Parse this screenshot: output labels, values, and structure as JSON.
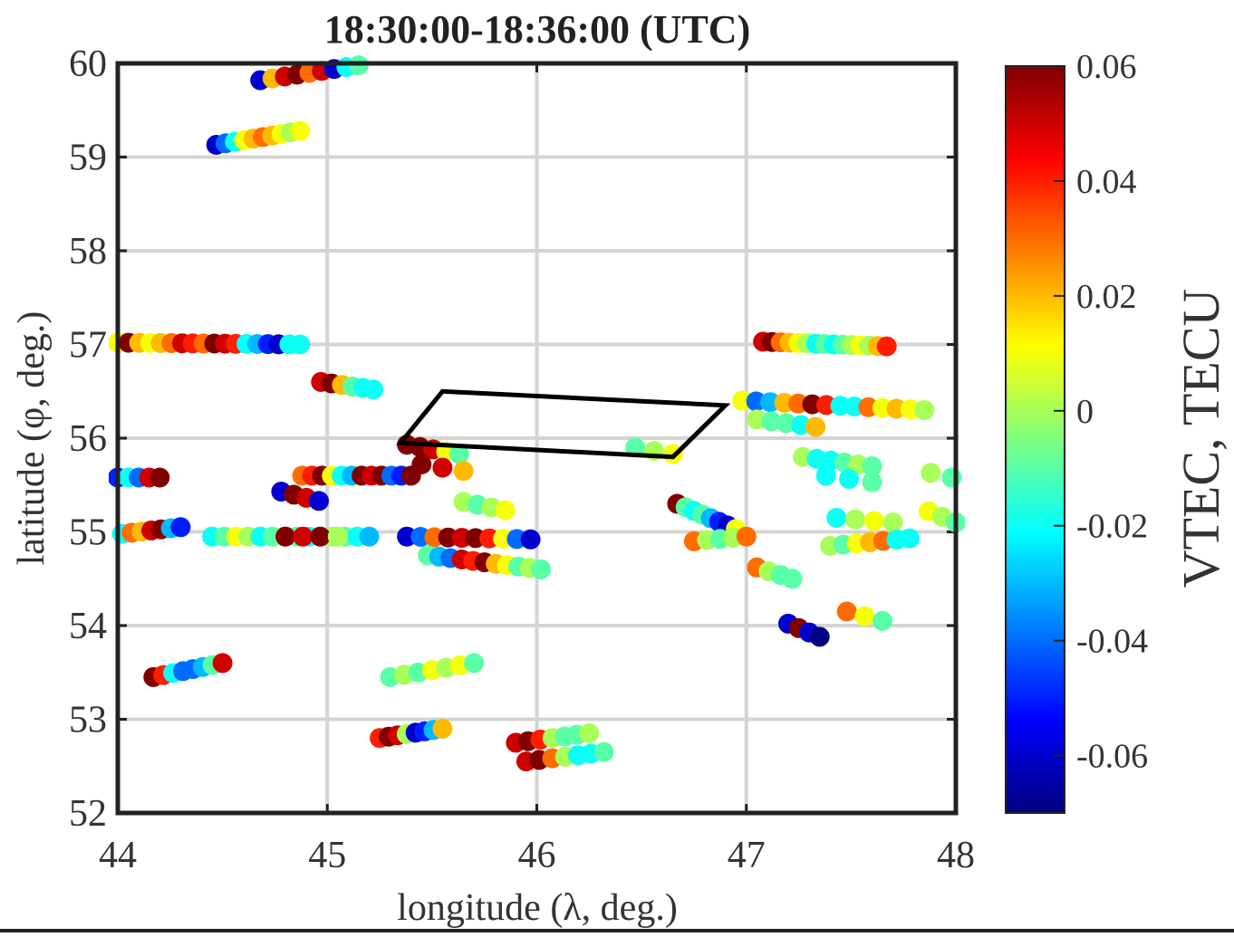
{
  "chart_data": {
    "type": "scatter",
    "title": "18:30:00-18:36:00 (UTC)",
    "xlabel": "longitude (λ, deg.)",
    "ylabel": "latitude (φ, deg.)",
    "xlim": [
      44,
      48
    ],
    "ylim": [
      52,
      60
    ],
    "xticks": [
      "44",
      "45",
      "46",
      "47",
      "48"
    ],
    "yticks": [
      "52",
      "53",
      "54",
      "55",
      "56",
      "57",
      "58",
      "59",
      "60"
    ],
    "grid": true,
    "colorbar": {
      "label": "VTEC, TECU",
      "range": [
        -0.07,
        0.06
      ],
      "ticks": [
        "0.06",
        "0.04",
        "0.02",
        "0",
        "-0.02",
        "-0.04",
        "-0.06"
      ],
      "colormap": "jet"
    },
    "region_outline": [
      [
        45.35,
        55.95
      ],
      [
        45.55,
        56.5
      ],
      [
        46.9,
        56.35
      ],
      [
        46.65,
        55.8
      ]
    ],
    "tracks": [
      {
        "x0": 44.68,
        "y0": 59.82,
        "x1": 45.15,
        "y1": 59.98,
        "v": [
          -0.06,
          0.02,
          0.05,
          0.06,
          0.03,
          0.05,
          -0.06,
          -0.02,
          -0.01
        ]
      },
      {
        "x0": 44.47,
        "y0": 59.13,
        "x1": 44.87,
        "y1": 59.28,
        "v": [
          -0.06,
          -0.04,
          -0.02,
          0.01,
          0.02,
          0.03,
          0.02,
          0.01,
          0.0,
          0.01
        ]
      },
      {
        "x0": 44.0,
        "y0": 57.02,
        "x1": 44.87,
        "y1": 57.0,
        "v": [
          0.01,
          0.06,
          0.02,
          0.01,
          0.02,
          0.03,
          0.05,
          0.04,
          0.03,
          0.06,
          0.05,
          0.04,
          -0.02,
          -0.03,
          -0.05,
          -0.06,
          -0.02,
          -0.02
        ]
      },
      {
        "x0": 44.97,
        "y0": 56.6,
        "x1": 45.22,
        "y1": 56.52,
        "v": [
          0.05,
          0.06,
          0.02,
          -0.01,
          -0.02,
          -0.02
        ]
      },
      {
        "x0": 44.0,
        "y0": 55.58,
        "x1": 44.2,
        "y1": 55.58,
        "v": [
          -0.05,
          -0.02,
          -0.04,
          0.05,
          0.06
        ]
      },
      {
        "x0": 44.02,
        "y0": 54.98,
        "x1": 44.3,
        "y1": 55.05,
        "v": [
          -0.02,
          0.03,
          0.02,
          0.05,
          0.06,
          -0.03,
          -0.05
        ]
      },
      {
        "x0": 44.45,
        "y0": 54.95,
        "x1": 45.2,
        "y1": 54.95,
        "v": [
          -0.02,
          -0.01,
          0.01,
          0.0,
          -0.02,
          -0.01,
          0.0,
          -0.01,
          -0.02,
          -0.01,
          0.0,
          -0.01,
          -0.02,
          -0.03
        ]
      },
      {
        "x0": 44.88,
        "y0": 55.6,
        "x1": 45.4,
        "y1": 55.6,
        "v": [
          0.03,
          0.04,
          0.06,
          0.01,
          -0.02,
          -0.03,
          0.06,
          0.05,
          0.06,
          -0.04,
          -0.05,
          0.06
        ]
      },
      {
        "x0": 44.78,
        "y0": 55.43,
        "x1": 44.96,
        "y1": 55.33,
        "v": [
          -0.06,
          0.06,
          0.05,
          -0.06
        ]
      },
      {
        "x0": 44.8,
        "y0": 54.95,
        "x1": 45.05,
        "y1": 54.95,
        "v": [
          0.06,
          0.05,
          0.06,
          0.0
        ]
      },
      {
        "x0": 45.38,
        "y0": 55.93,
        "x1": 45.63,
        "y1": 55.83,
        "v": [
          0.06,
          0.06,
          0.05,
          0.01,
          -0.01
        ]
      },
      {
        "x0": 45.45,
        "y0": 55.72,
        "x1": 45.65,
        "y1": 55.65,
        "v": [
          0.06,
          0.05,
          0.02
        ]
      },
      {
        "x0": 45.65,
        "y0": 55.32,
        "x1": 45.85,
        "y1": 55.23,
        "v": [
          0.0,
          -0.01,
          0.0,
          0.01
        ]
      },
      {
        "x0": 45.38,
        "y0": 54.95,
        "x1": 45.97,
        "y1": 54.92,
        "v": [
          -0.06,
          -0.04,
          0.03,
          0.06,
          0.05,
          0.06,
          0.04,
          0.01,
          -0.04,
          -0.06
        ]
      },
      {
        "x0": 45.48,
        "y0": 54.75,
        "x1": 46.02,
        "y1": 54.6,
        "v": [
          -0.01,
          -0.03,
          -0.04,
          0.05,
          0.04,
          0.06,
          0.02,
          0.01,
          -0.01,
          0.0,
          -0.01
        ]
      },
      {
        "x0": 46.47,
        "y0": 55.9,
        "x1": 46.65,
        "y1": 55.83,
        "v": [
          -0.01,
          0.0,
          0.01
        ]
      },
      {
        "x0": 46.67,
        "y0": 55.3,
        "x1": 46.95,
        "y1": 55.03,
        "v": [
          0.06,
          -0.01,
          -0.02,
          -0.01,
          -0.03,
          -0.05,
          -0.06,
          0.01
        ]
      },
      {
        "x0": 46.75,
        "y0": 54.9,
        "x1": 47.0,
        "y1": 54.95,
        "v": [
          0.03,
          0.0,
          -0.01,
          0.0,
          0.03
        ]
      },
      {
        "x0": 47.05,
        "y0": 54.62,
        "x1": 47.22,
        "y1": 54.5,
        "v": [
          0.03,
          0.0,
          -0.01,
          -0.01
        ]
      },
      {
        "x0": 47.2,
        "y0": 54.02,
        "x1": 47.35,
        "y1": 53.88,
        "v": [
          -0.06,
          0.06,
          -0.06,
          -0.07
        ]
      },
      {
        "x0": 47.08,
        "y0": 57.03,
        "x1": 47.67,
        "y1": 56.98,
        "v": [
          0.05,
          0.06,
          0.03,
          0.02,
          0.01,
          0.0,
          -0.02,
          -0.01,
          -0.02,
          -0.01,
          0.0,
          0.01,
          0.0,
          0.02,
          0.04
        ]
      },
      {
        "x0": 46.98,
        "y0": 56.4,
        "x1": 47.85,
        "y1": 56.3,
        "v": [
          0.01,
          -0.04,
          -0.03,
          0.02,
          0.03,
          0.06,
          0.04,
          -0.02,
          -0.02,
          0.03,
          0.01,
          0.02,
          0.01,
          0.0
        ]
      },
      {
        "x0": 47.05,
        "y0": 56.2,
        "x1": 47.33,
        "y1": 56.12,
        "v": [
          0.0,
          -0.01,
          -0.01,
          -0.02,
          0.02
        ]
      },
      {
        "x0": 47.27,
        "y0": 55.8,
        "x1": 47.6,
        "y1": 55.7,
        "v": [
          0.0,
          -0.02,
          -0.02,
          -0.01,
          0.0,
          -0.01
        ]
      },
      {
        "x0": 47.38,
        "y0": 55.6,
        "x1": 47.6,
        "y1": 55.53,
        "v": [
          -0.02,
          -0.02,
          -0.01
        ]
      },
      {
        "x0": 47.43,
        "y0": 55.15,
        "x1": 47.7,
        "y1": 55.1,
        "v": [
          -0.02,
          0.0,
          0.01,
          0.0
        ]
      },
      {
        "x0": 47.4,
        "y0": 54.85,
        "x1": 47.78,
        "y1": 54.93,
        "v": [
          0.0,
          -0.01,
          0.01,
          0.02,
          0.03,
          -0.02,
          -0.02
        ]
      },
      {
        "x0": 47.48,
        "y0": 54.15,
        "x1": 47.65,
        "y1": 54.05,
        "v": [
          0.03,
          0.01,
          -0.01
        ]
      },
      {
        "x0": 47.88,
        "y0": 55.63,
        "x1": 47.98,
        "y1": 55.58,
        "v": [
          0.0,
          -0.01
        ]
      },
      {
        "x0": 47.87,
        "y0": 55.22,
        "x1": 48.0,
        "y1": 55.1,
        "v": [
          0.01,
          0.0,
          -0.01
        ]
      },
      {
        "x0": 44.17,
        "y0": 53.45,
        "x1": 44.5,
        "y1": 53.6,
        "v": [
          0.06,
          0.04,
          -0.02,
          -0.04,
          -0.04,
          -0.03,
          -0.01,
          0.05
        ]
      },
      {
        "x0": 45.3,
        "y0": 53.45,
        "x1": 45.7,
        "y1": 53.6,
        "v": [
          -0.01,
          0.0,
          -0.01,
          0.01,
          0.0,
          0.01,
          -0.01
        ]
      },
      {
        "x0": 45.25,
        "y0": 52.8,
        "x1": 45.55,
        "y1": 52.9,
        "v": [
          0.04,
          0.06,
          0.05,
          0.0,
          -0.06,
          -0.05,
          -0.03,
          0.02
        ]
      },
      {
        "x0": 45.9,
        "y0": 52.75,
        "x1": 46.25,
        "y1": 52.85,
        "v": [
          0.05,
          0.06,
          0.04,
          0.0,
          -0.01,
          -0.01,
          0.0
        ]
      },
      {
        "x0": 45.95,
        "y0": 52.55,
        "x1": 46.32,
        "y1": 52.65,
        "v": [
          0.05,
          0.06,
          0.03,
          0.0,
          -0.02,
          -0.02,
          -0.01
        ]
      }
    ]
  }
}
